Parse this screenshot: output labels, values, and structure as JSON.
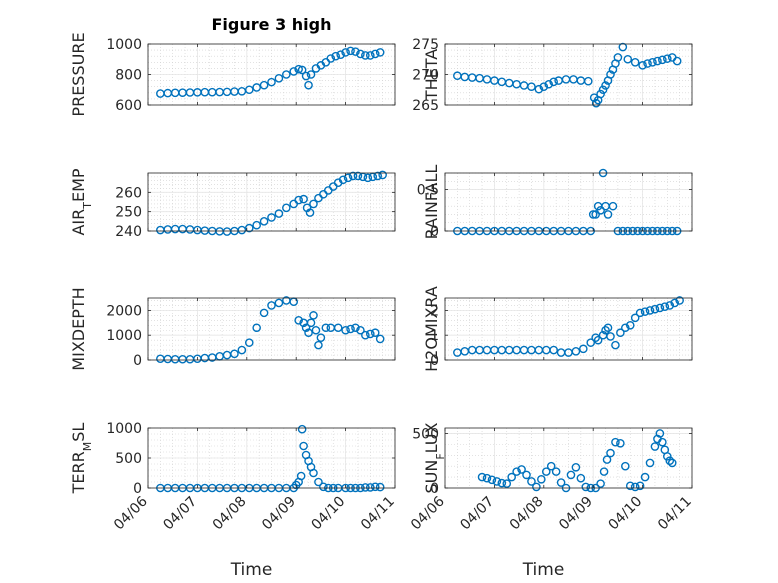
{
  "figure": {
    "title": "Figure 3 high",
    "marker_color": "#0072BD",
    "grid": "major and minor dotted",
    "x_ticks": [
      "04/06",
      "04/07",
      "04/08",
      "04/09",
      "04/10",
      "04/11"
    ],
    "x_label": "Time"
  },
  "chart_data": [
    {
      "type": "scatter",
      "ylabel": "PRESSURE",
      "ylim": [
        600,
        1000
      ],
      "yticks": [
        600,
        800,
        1000
      ],
      "xlim": [
        0,
        5
      ],
      "x": [
        0.25,
        0.4,
        0.55,
        0.7,
        0.85,
        1.0,
        1.15,
        1.3,
        1.45,
        1.6,
        1.75,
        1.9,
        2.05,
        2.2,
        2.35,
        2.5,
        2.65,
        2.8,
        2.95,
        3.05,
        3.12,
        3.2,
        3.25,
        3.3,
        3.4,
        3.5,
        3.6,
        3.7,
        3.8,
        3.9,
        4.0,
        4.1,
        4.2,
        4.3,
        4.4,
        4.5,
        4.6,
        4.7
      ],
      "y": [
        675,
        678,
        680,
        681,
        682,
        683,
        684,
        684,
        685,
        686,
        688,
        690,
        700,
        715,
        730,
        750,
        775,
        800,
        820,
        835,
        830,
        790,
        730,
        800,
        840,
        860,
        880,
        905,
        920,
        930,
        945,
        955,
        950,
        935,
        925,
        925,
        935,
        945
      ]
    },
    {
      "type": "scatter",
      "ylabel": "THETA",
      "ylim": [
        265,
        275
      ],
      "yticks": [
        265,
        270,
        275
      ],
      "xlim": [
        0,
        5
      ],
      "x": [
        0.25,
        0.4,
        0.55,
        0.7,
        0.85,
        1.0,
        1.15,
        1.3,
        1.45,
        1.6,
        1.75,
        1.9,
        2.0,
        2.1,
        2.2,
        2.3,
        2.45,
        2.6,
        2.75,
        2.9,
        3.02,
        3.06,
        3.1,
        3.15,
        3.2,
        3.25,
        3.3,
        3.35,
        3.4,
        3.45,
        3.5,
        3.6,
        3.7,
        3.85,
        4.0,
        4.1,
        4.2,
        4.3,
        4.4,
        4.5,
        4.6,
        4.7
      ],
      "y": [
        269.8,
        269.6,
        269.5,
        269.4,
        269.2,
        269.0,
        268.8,
        268.6,
        268.4,
        268.2,
        268.0,
        267.6,
        268.0,
        268.4,
        268.8,
        269.0,
        269.2,
        269.2,
        269.0,
        268.9,
        266.2,
        265.3,
        265.8,
        266.8,
        267.5,
        268.2,
        269.0,
        270.0,
        270.8,
        271.8,
        272.8,
        274.5,
        272.5,
        272.0,
        271.5,
        271.8,
        272.0,
        272.2,
        272.4,
        272.6,
        272.8,
        272.2
      ]
    },
    {
      "type": "scatter",
      "ylabel": "AIR_TEMP",
      "ylim": [
        240,
        270
      ],
      "yticks": [
        240,
        250,
        260
      ],
      "xlim": [
        0,
        5
      ],
      "x": [
        0.25,
        0.4,
        0.55,
        0.7,
        0.85,
        1.0,
        1.15,
        1.3,
        1.45,
        1.6,
        1.75,
        1.9,
        2.05,
        2.2,
        2.35,
        2.5,
        2.65,
        2.8,
        2.95,
        3.05,
        3.15,
        3.22,
        3.28,
        3.35,
        3.45,
        3.55,
        3.65,
        3.75,
        3.85,
        3.95,
        4.05,
        4.15,
        4.25,
        4.35,
        4.45,
        4.55,
        4.65,
        4.75
      ],
      "y": [
        240.5,
        240.8,
        241.0,
        241.0,
        240.8,
        240.5,
        240.2,
        240.0,
        239.8,
        239.7,
        240.0,
        240.5,
        241.5,
        243.0,
        245.0,
        247.0,
        249.0,
        252.0,
        254.0,
        256.0,
        256.5,
        252.0,
        249.5,
        254.0,
        257.0,
        259.0,
        261.0,
        263.0,
        265.0,
        266.5,
        267.5,
        268.5,
        268.5,
        268.0,
        267.5,
        268.0,
        268.5,
        269.0
      ]
    },
    {
      "type": "scatter",
      "ylabel": "RAINFALL",
      "ylim": [
        0,
        0.7
      ],
      "yticks": [
        0,
        0.5
      ],
      "xlim": [
        0,
        5
      ],
      "x": [
        0.25,
        0.4,
        0.55,
        0.7,
        0.85,
        1.0,
        1.15,
        1.3,
        1.45,
        1.6,
        1.75,
        1.9,
        2.05,
        2.2,
        2.35,
        2.5,
        2.65,
        2.8,
        2.95,
        3.0,
        3.05,
        3.1,
        3.15,
        3.2,
        3.25,
        3.3,
        3.4,
        3.5,
        3.6,
        3.7,
        3.8,
        3.9,
        4.0,
        4.1,
        4.2,
        4.3,
        4.4,
        4.5,
        4.6,
        4.7
      ],
      "y": [
        0,
        0,
        0,
        0,
        0,
        0,
        0,
        0,
        0,
        0,
        0,
        0,
        0,
        0,
        0,
        0,
        0,
        0,
        0,
        0.2,
        0.2,
        0.3,
        0.25,
        0.7,
        0.3,
        0.2,
        0.3,
        0,
        0,
        0,
        0,
        0,
        0,
        0,
        0,
        0,
        0,
        0,
        0,
        0
      ]
    },
    {
      "type": "scatter",
      "ylabel": "MIXDEPTH",
      "ylim": [
        0,
        2500
      ],
      "yticks": [
        0,
        1000,
        2000
      ],
      "xlim": [
        0,
        5
      ],
      "x": [
        0.25,
        0.4,
        0.55,
        0.7,
        0.85,
        1.0,
        1.15,
        1.3,
        1.45,
        1.6,
        1.75,
        1.9,
        2.05,
        2.2,
        2.35,
        2.5,
        2.65,
        2.8,
        2.95,
        3.05,
        3.15,
        3.2,
        3.25,
        3.3,
        3.35,
        3.4,
        3.45,
        3.5,
        3.6,
        3.7,
        3.85,
        4.0,
        4.1,
        4.2,
        4.3,
        4.4,
        4.5,
        4.6,
        4.7
      ],
      "y": [
        50,
        40,
        30,
        30,
        30,
        50,
        80,
        100,
        150,
        200,
        250,
        400,
        700,
        1300,
        1900,
        2200,
        2300,
        2400,
        2350,
        1600,
        1500,
        1300,
        1100,
        1500,
        1800,
        1200,
        600,
        900,
        1300,
        1300,
        1300,
        1200,
        1250,
        1300,
        1200,
        1000,
        1050,
        1100,
        850
      ]
    },
    {
      "type": "scatter",
      "ylabel": "H2OMIXRA",
      "ylim": [
        0,
        2.5
      ],
      "yticks": [
        0,
        1,
        2
      ],
      "xlim": [
        0,
        5
      ],
      "x": [
        0.25,
        0.4,
        0.55,
        0.7,
        0.85,
        1.0,
        1.15,
        1.3,
        1.45,
        1.6,
        1.75,
        1.9,
        2.05,
        2.2,
        2.35,
        2.5,
        2.65,
        2.8,
        2.95,
        3.05,
        3.1,
        3.2,
        3.25,
        3.3,
        3.35,
        3.45,
        3.55,
        3.65,
        3.75,
        3.85,
        3.95,
        4.05,
        4.15,
        4.25,
        4.35,
        4.45,
        4.55,
        4.65,
        4.75
      ],
      "y": [
        0.3,
        0.35,
        0.4,
        0.4,
        0.4,
        0.4,
        0.4,
        0.4,
        0.4,
        0.4,
        0.4,
        0.4,
        0.4,
        0.4,
        0.3,
        0.3,
        0.35,
        0.45,
        0.7,
        0.9,
        0.8,
        1.0,
        1.2,
        1.3,
        0.95,
        0.6,
        1.1,
        1.3,
        1.4,
        1.7,
        1.9,
        1.95,
        2.0,
        2.05,
        2.1,
        2.15,
        2.2,
        2.3,
        2.4
      ]
    },
    {
      "type": "scatter",
      "ylabel": "TERR_MSL",
      "ylim": [
        0,
        1000
      ],
      "yticks": [
        0,
        500,
        1000
      ],
      "xlim": [
        0,
        5
      ],
      "x": [
        0.25,
        0.4,
        0.55,
        0.7,
        0.85,
        1.0,
        1.15,
        1.3,
        1.45,
        1.6,
        1.75,
        1.9,
        2.05,
        2.2,
        2.35,
        2.5,
        2.65,
        2.8,
        2.95,
        3.0,
        3.05,
        3.1,
        3.12,
        3.15,
        3.2,
        3.25,
        3.3,
        3.35,
        3.45,
        3.55,
        3.65,
        3.75,
        3.85,
        4.0,
        4.1,
        4.2,
        4.3,
        4.4,
        4.5,
        4.6,
        4.7
      ],
      "y": [
        0,
        0,
        0,
        0,
        0,
        0,
        0,
        0,
        0,
        0,
        0,
        0,
        0,
        0,
        0,
        0,
        0,
        0,
        0,
        50,
        100,
        200,
        980,
        700,
        550,
        450,
        350,
        250,
        100,
        20,
        0,
        0,
        0,
        0,
        0,
        0,
        0,
        10,
        10,
        20,
        15
      ]
    },
    {
      "type": "scatter",
      "ylabel": "SUN_FLUX",
      "ylim": [
        0,
        550
      ],
      "yticks": [
        0,
        500
      ],
      "xlim": [
        0,
        5
      ],
      "x": [
        0.75,
        0.85,
        0.95,
        1.05,
        1.15,
        1.25,
        1.35,
        1.45,
        1.55,
        1.65,
        1.75,
        1.85,
        1.95,
        2.05,
        2.15,
        2.25,
        2.35,
        2.45,
        2.55,
        2.65,
        2.75,
        2.85,
        2.95,
        3.05,
        3.15,
        3.22,
        3.28,
        3.35,
        3.45,
        3.55,
        3.65,
        3.75,
        3.85,
        3.95,
        4.05,
        4.15,
        4.25,
        4.3,
        4.35,
        4.4,
        4.45,
        4.5,
        4.55,
        4.6
      ],
      "y": [
        100,
        90,
        75,
        60,
        45,
        40,
        100,
        150,
        170,
        120,
        60,
        10,
        80,
        150,
        200,
        150,
        50,
        0,
        120,
        190,
        90,
        10,
        0,
        0,
        40,
        150,
        260,
        320,
        420,
        410,
        200,
        20,
        10,
        20,
        100,
        230,
        380,
        450,
        500,
        420,
        350,
        290,
        250,
        230
      ]
    }
  ]
}
